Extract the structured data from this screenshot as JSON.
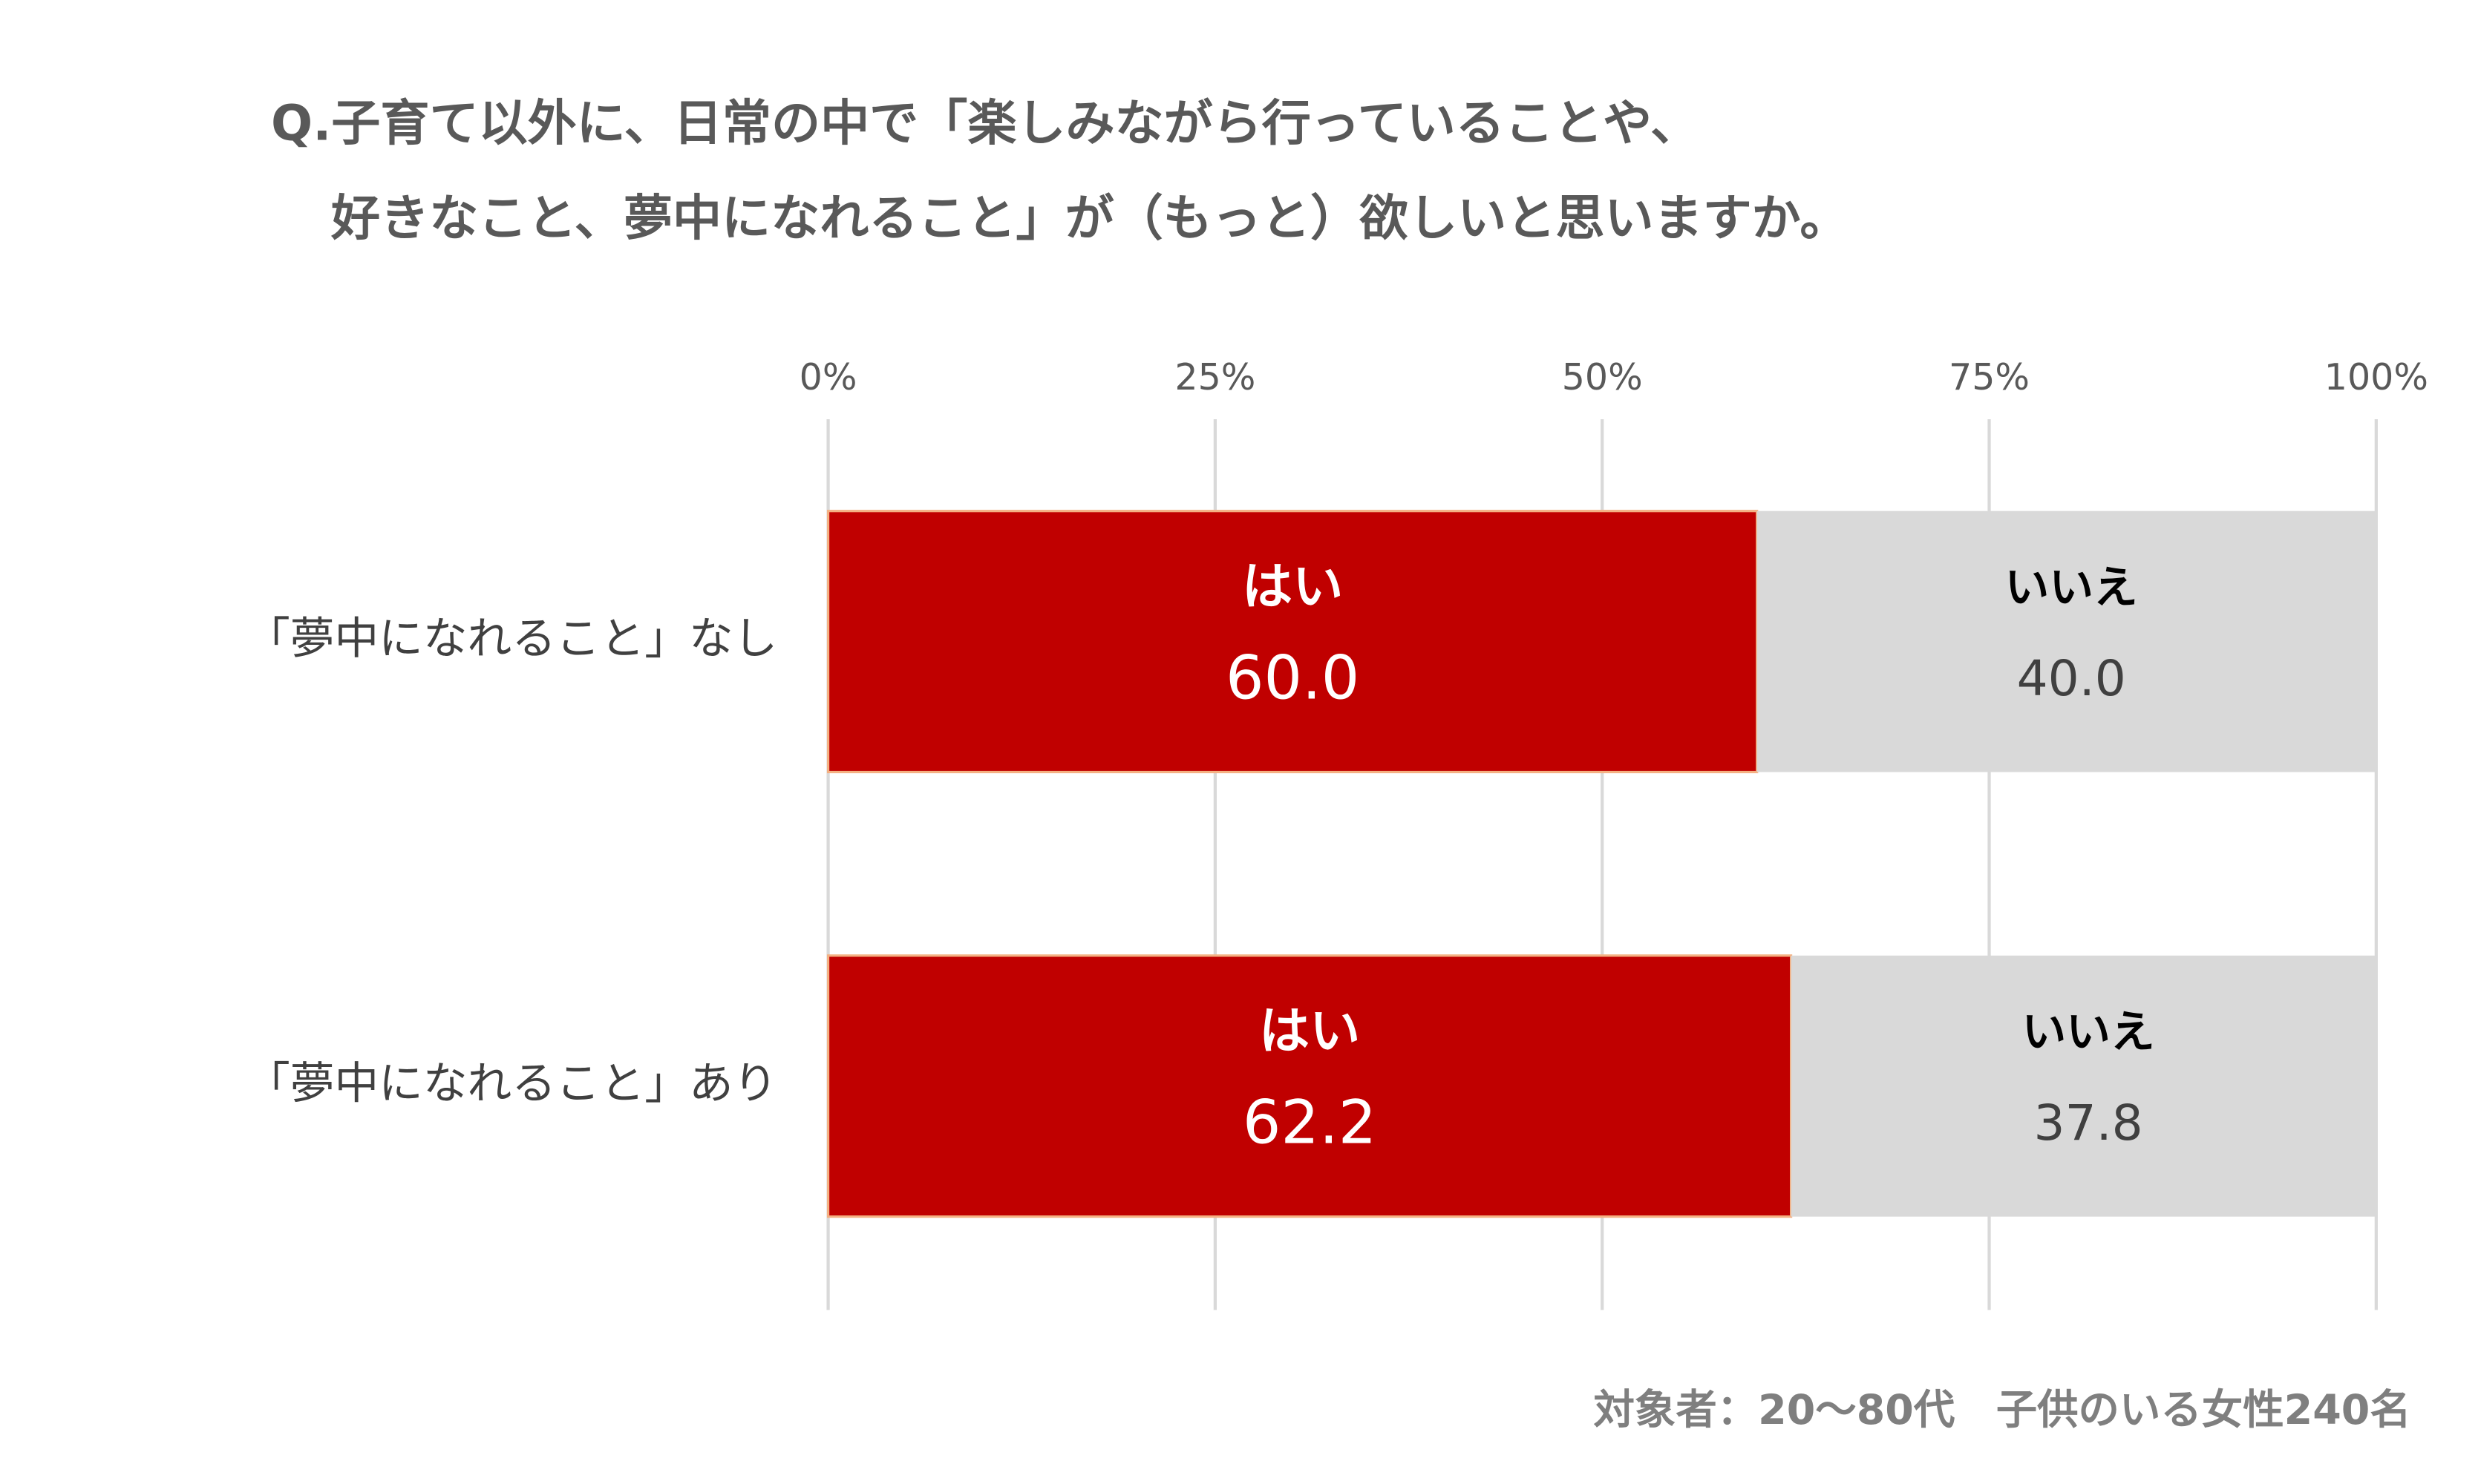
{
  "chart_data": {
    "type": "stacked-barh",
    "title": [
      "Q.子育て以外に、日常の中で「楽しみながら行っていることや、",
      "好きなこと、夢中になれること」が（もっと）欲しいと思いますか。"
    ],
    "categories": [
      "「夢中になれること」なし",
      "「夢中になれること」あり"
    ],
    "series": [
      {
        "name": "はい",
        "color": "#c00000",
        "values": [
          60.0,
          62.2
        ],
        "value_labels": [
          "60.0",
          "62.2"
        ]
      },
      {
        "name": "いいえ",
        "color": "#d9d9d9",
        "values": [
          40.0,
          37.8
        ],
        "value_labels": [
          "40.0",
          "37.8"
        ]
      }
    ],
    "xlim": [
      0,
      100
    ],
    "xticks": [
      {
        "value": 0,
        "label": "0%"
      },
      {
        "value": 25,
        "label": "25%"
      },
      {
        "value": 50,
        "label": "50%"
      },
      {
        "value": 75,
        "label": "75%"
      },
      {
        "value": 100,
        "label": "100%"
      }
    ],
    "grid": true,
    "footnote": "対象者：20～80代　子供のいる女性240名"
  }
}
